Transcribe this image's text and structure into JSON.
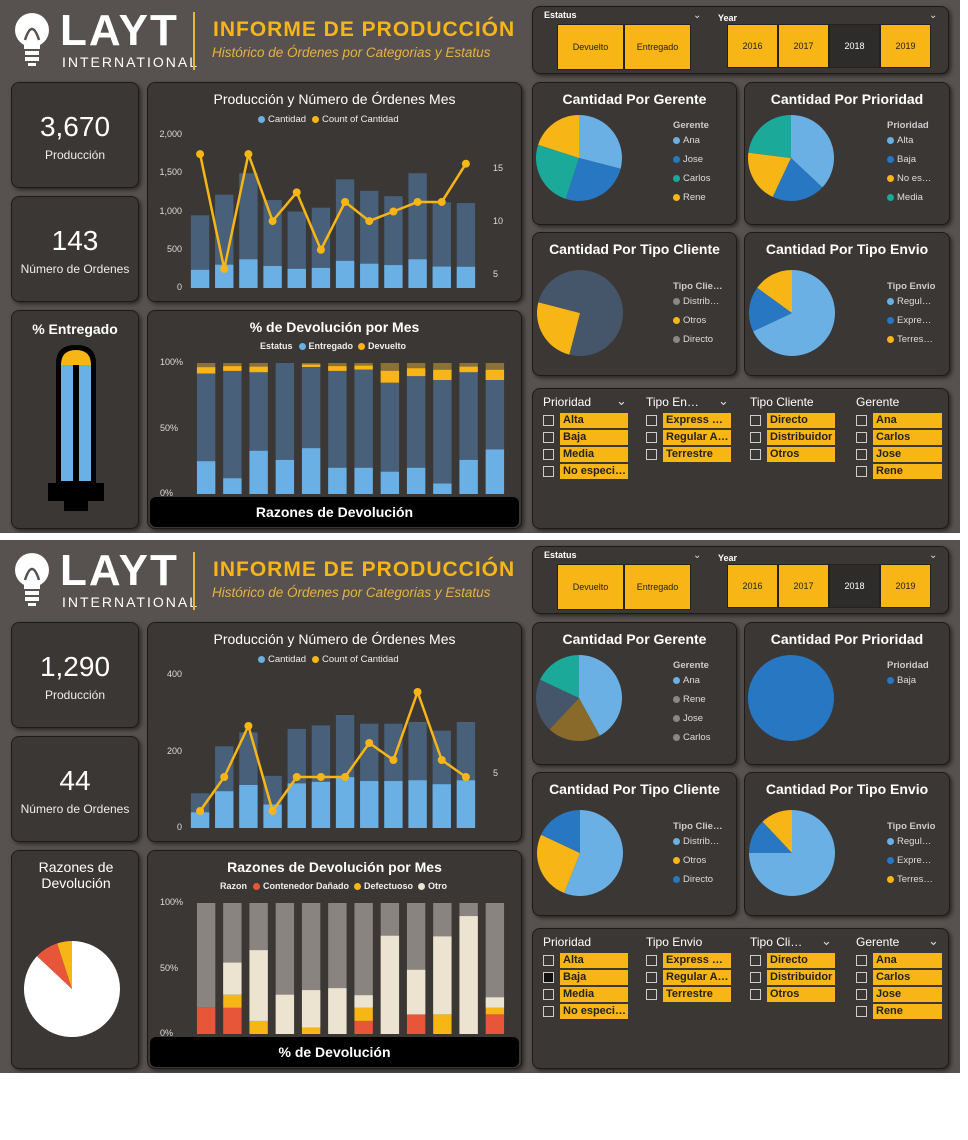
{
  "colors": {
    "accent": "#f8b516",
    "blue_light": "#6ab0e4",
    "blue_mid": "#2777c3",
    "slate": "#45566b",
    "teal": "#1ba99a",
    "bg": "#57524f",
    "card": "#3b3735",
    "red": "#e8563a",
    "cream": "#ece4d1",
    "brown": "#8a6a2a",
    "grey": "#8a8480"
  },
  "panels": [
    {
      "logo": {
        "name": "LAYT",
        "sub": "INTERNATIONAL"
      },
      "header": {
        "title": "INFORME DE PRODUCCIÓN",
        "subtitle": "Histórico de Órdenes por Categorias y Estatus"
      },
      "filters": {
        "estatus_label": "Estatus",
        "estatus": [
          "Devuelto",
          "Entregado"
        ],
        "year_label": "Year",
        "years": [
          "2016",
          "2017",
          "2018",
          "2019"
        ],
        "year_selected": "2018"
      },
      "kpi1": {
        "value": "3,670",
        "label": "Producción"
      },
      "kpi2": {
        "value": "143",
        "label": "Número de Ordenes"
      },
      "gauge": {
        "title": "% Entregado"
      },
      "combo": {
        "title": "Producción y Número de Órdenes Mes",
        "legend": [
          "Cantidad",
          "Count of Cantidad"
        ],
        "yleft": [
          "2,000",
          "1,500",
          "1,000",
          "500",
          "0"
        ],
        "yright": [
          "15",
          "10",
          "5"
        ]
      },
      "stack": {
        "title": "% de Devolución por Mes",
        "legend_title": "Estatus",
        "legend": [
          "Entregado",
          "Devuelto"
        ],
        "ylabels": [
          "100%",
          "50%",
          "0%"
        ],
        "button": "Razones de Devolución"
      },
      "pies": [
        {
          "title": "Cantidad Por Gerente",
          "legend_title": "Gerente",
          "items": [
            "Ana",
            "Jose",
            "Carlos",
            "Rene"
          ]
        },
        {
          "title": "Cantidad Por Prioridad",
          "legend_title": "Prioridad",
          "items": [
            "Alta",
            "Baja",
            "No es…",
            "Media"
          ]
        },
        {
          "title": "Cantidad Por Tipo Cliente",
          "legend_title": "Tipo Clie…",
          "items": [
            "Distrib…",
            "Otros",
            "Directo"
          ]
        },
        {
          "title": "Cantidad Por Tipo Envio",
          "legend_title": "Tipo Envio",
          "items": [
            "Regul…",
            "Expre…",
            "Terres…"
          ]
        }
      ],
      "slicers": [
        {
          "header": "Prioridad",
          "items": [
            "Alta",
            "Baja",
            "Media",
            "No especi…"
          ]
        },
        {
          "header": "Tipo En…",
          "items": [
            "Express …",
            "Regular A…",
            "Terrestre"
          ]
        },
        {
          "header": "Tipo Cliente",
          "items": [
            "Directo",
            "Distribuidor",
            "Otros"
          ]
        },
        {
          "header": "Gerente",
          "items": [
            "Ana",
            "Carlos",
            "Jose",
            "Rene"
          ]
        }
      ]
    },
    {
      "logo": {
        "name": "LAYT",
        "sub": "INTERNATIONAL"
      },
      "header": {
        "title": "INFORME DE PRODUCCIÓN",
        "subtitle": "Histórico de Órdenes por Categorias y Estatus"
      },
      "filters": {
        "estatus_label": "Estatus",
        "estatus": [
          "Devuelto",
          "Entregado"
        ],
        "year_label": "Year",
        "years": [
          "2016",
          "2017",
          "2018",
          "2019"
        ],
        "year_selected": "2018"
      },
      "kpi1": {
        "value": "1,290",
        "label": "Producción"
      },
      "kpi2": {
        "value": "44",
        "label": "Número de Ordenes"
      },
      "gauge": {
        "title": "Razones de Devolución"
      },
      "combo": {
        "title": "Producción y Número de Órdenes Mes",
        "legend": [
          "Cantidad",
          "Count of Cantidad"
        ],
        "yleft": [
          "400",
          "200",
          "0"
        ],
        "yright": [
          "5",
          "0"
        ]
      },
      "stack": {
        "title": "Razones de Devolución por Mes",
        "legend_title": "Razon",
        "legend": [
          "Contenedor Dañado",
          "Defectuoso",
          "Otro"
        ],
        "ylabels": [
          "100%",
          "50%",
          "0%"
        ],
        "button": "% de Devolución"
      },
      "pies": [
        {
          "title": "Cantidad Por Gerente",
          "legend_title": "Gerente",
          "items": [
            "Ana",
            "Rene",
            "Jose",
            "Carlos"
          ]
        },
        {
          "title": "Cantidad Por Prioridad",
          "legend_title": "Prioridad",
          "items": [
            "Baja"
          ]
        },
        {
          "title": "Cantidad Por Tipo Cliente",
          "legend_title": "Tipo Clie…",
          "items": [
            "Distrib…",
            "Otros",
            "Directo"
          ]
        },
        {
          "title": "Cantidad Por Tipo Envio",
          "legend_title": "Tipo Envio",
          "items": [
            "Regul…",
            "Expre…",
            "Terres…"
          ]
        }
      ],
      "slicers": [
        {
          "header": "Prioridad",
          "items": [
            "Alta",
            "Baja",
            "Media",
            "No especi…"
          ]
        },
        {
          "header": "Tipo Envio",
          "items": [
            "Express …",
            "Regular A…",
            "Terrestre"
          ]
        },
        {
          "header": "Tipo Cli…",
          "items": [
            "Directo",
            "Distribuidor",
            "Otros"
          ]
        },
        {
          "header": "Gerente",
          "items": [
            "Ana",
            "Carlos",
            "Jose",
            "Rene"
          ]
        }
      ]
    }
  ],
  "chart_data": [
    {
      "type": "bar",
      "title": "Producción y Número de Órdenes Mes",
      "series": [
        {
          "name": "Cantidad",
          "values": [
            950,
            1220,
            1500,
            1150,
            1000,
            1050,
            1420,
            1270,
            1200,
            1500,
            1120,
            1110
          ]
        },
        {
          "name": "Count of Cantidad",
          "values": [
            17,
            5,
            17,
            10,
            13,
            7,
            12,
            10,
            11,
            12,
            12,
            16
          ]
        }
      ],
      "ylim": [
        0,
        2000
      ],
      "y2lim": [
        3,
        19
      ]
    },
    {
      "type": "bar",
      "title": "% de Devolución por Mes",
      "series": [
        {
          "name": "Entregado",
          "values": [
            92,
            94,
            93,
            100,
            97,
            94,
            95,
            85,
            90,
            87,
            93,
            87
          ]
        },
        {
          "name": "Devuelto",
          "values": [
            8,
            6,
            7,
            0,
            3,
            6,
            5,
            15,
            10,
            13,
            7,
            13
          ]
        }
      ],
      "ylim": [
        0,
        100
      ]
    },
    {
      "type": "pie",
      "title": "Cantidad Por Gerente",
      "categories": [
        "Ana",
        "Jose",
        "Carlos",
        "Rene"
      ],
      "values": [
        29,
        26,
        25,
        20
      ]
    },
    {
      "type": "pie",
      "title": "Cantidad Por Prioridad",
      "categories": [
        "Alta",
        "Baja",
        "No es…",
        "Media"
      ],
      "values": [
        37,
        20,
        20,
        23
      ]
    },
    {
      "type": "pie",
      "title": "Cantidad Por Tipo Cliente",
      "categories": [
        "Distrib…",
        "Otros",
        "Directo"
      ],
      "values": [
        54,
        25,
        21
      ]
    },
    {
      "type": "pie",
      "title": "Cantidad Por Tipo Envio",
      "categories": [
        "Regul…",
        "Expre…",
        "Terres…"
      ],
      "values": [
        68,
        17,
        15
      ]
    },
    {
      "type": "bar",
      "title": "Producción y Número de Órdenes Mes",
      "series": [
        {
          "name": "Cantidad",
          "values": [
            100,
            235,
            275,
            150,
            285,
            295,
            325,
            300,
            300,
            305,
            280,
            305
          ]
        },
        {
          "name": "Count of Cantidad",
          "values": [
            1,
            3,
            6,
            1,
            3,
            3,
            3,
            5,
            4,
            8,
            4,
            3
          ]
        }
      ],
      "ylim": [
        0,
        440
      ],
      "y2lim": [
        0,
        9
      ]
    },
    {
      "type": "bar",
      "title": "Razones de Devolución por Mes",
      "series": [
        {
          "name": "Contenedor Dañado",
          "values": [
            20,
            20,
            0,
            0,
            0,
            0,
            10,
            0,
            15,
            0,
            0,
            15
          ]
        },
        {
          "name": "Defectuoso",
          "values": [
            0,
            10,
            10,
            0,
            5,
            0,
            10,
            0,
            0,
            15,
            0,
            5
          ]
        },
        {
          "name": "Otro",
          "values": [
            80,
            70,
            90,
            100,
            95,
            100,
            80,
            100,
            85,
            85,
            100,
            80
          ]
        }
      ],
      "ylim": [
        0,
        100
      ]
    },
    {
      "type": "pie",
      "title": "Cantidad Por Gerente",
      "categories": [
        "Ana",
        "Rene",
        "Jose",
        "Carlos"
      ],
      "values": [
        42,
        20,
        20,
        18
      ]
    },
    {
      "type": "pie",
      "title": "Cantidad Por Prioridad",
      "categories": [
        "Baja"
      ],
      "values": [
        100
      ]
    },
    {
      "type": "pie",
      "title": "Cantidad Por Tipo Cliente",
      "categories": [
        "Distrib…",
        "Otros",
        "Directo"
      ],
      "values": [
        56,
        26,
        18
      ]
    },
    {
      "type": "pie",
      "title": "Cantidad Por Tipo Envio",
      "categories": [
        "Regul…",
        "Expre…",
        "Terres…"
      ],
      "values": [
        75,
        13,
        12
      ]
    },
    {
      "type": "pie",
      "title": "Razones de Devolución",
      "categories": [
        "Otro",
        "Contenedor Dañado",
        "Defectuoso"
      ],
      "values": [
        87,
        8,
        5
      ]
    }
  ]
}
